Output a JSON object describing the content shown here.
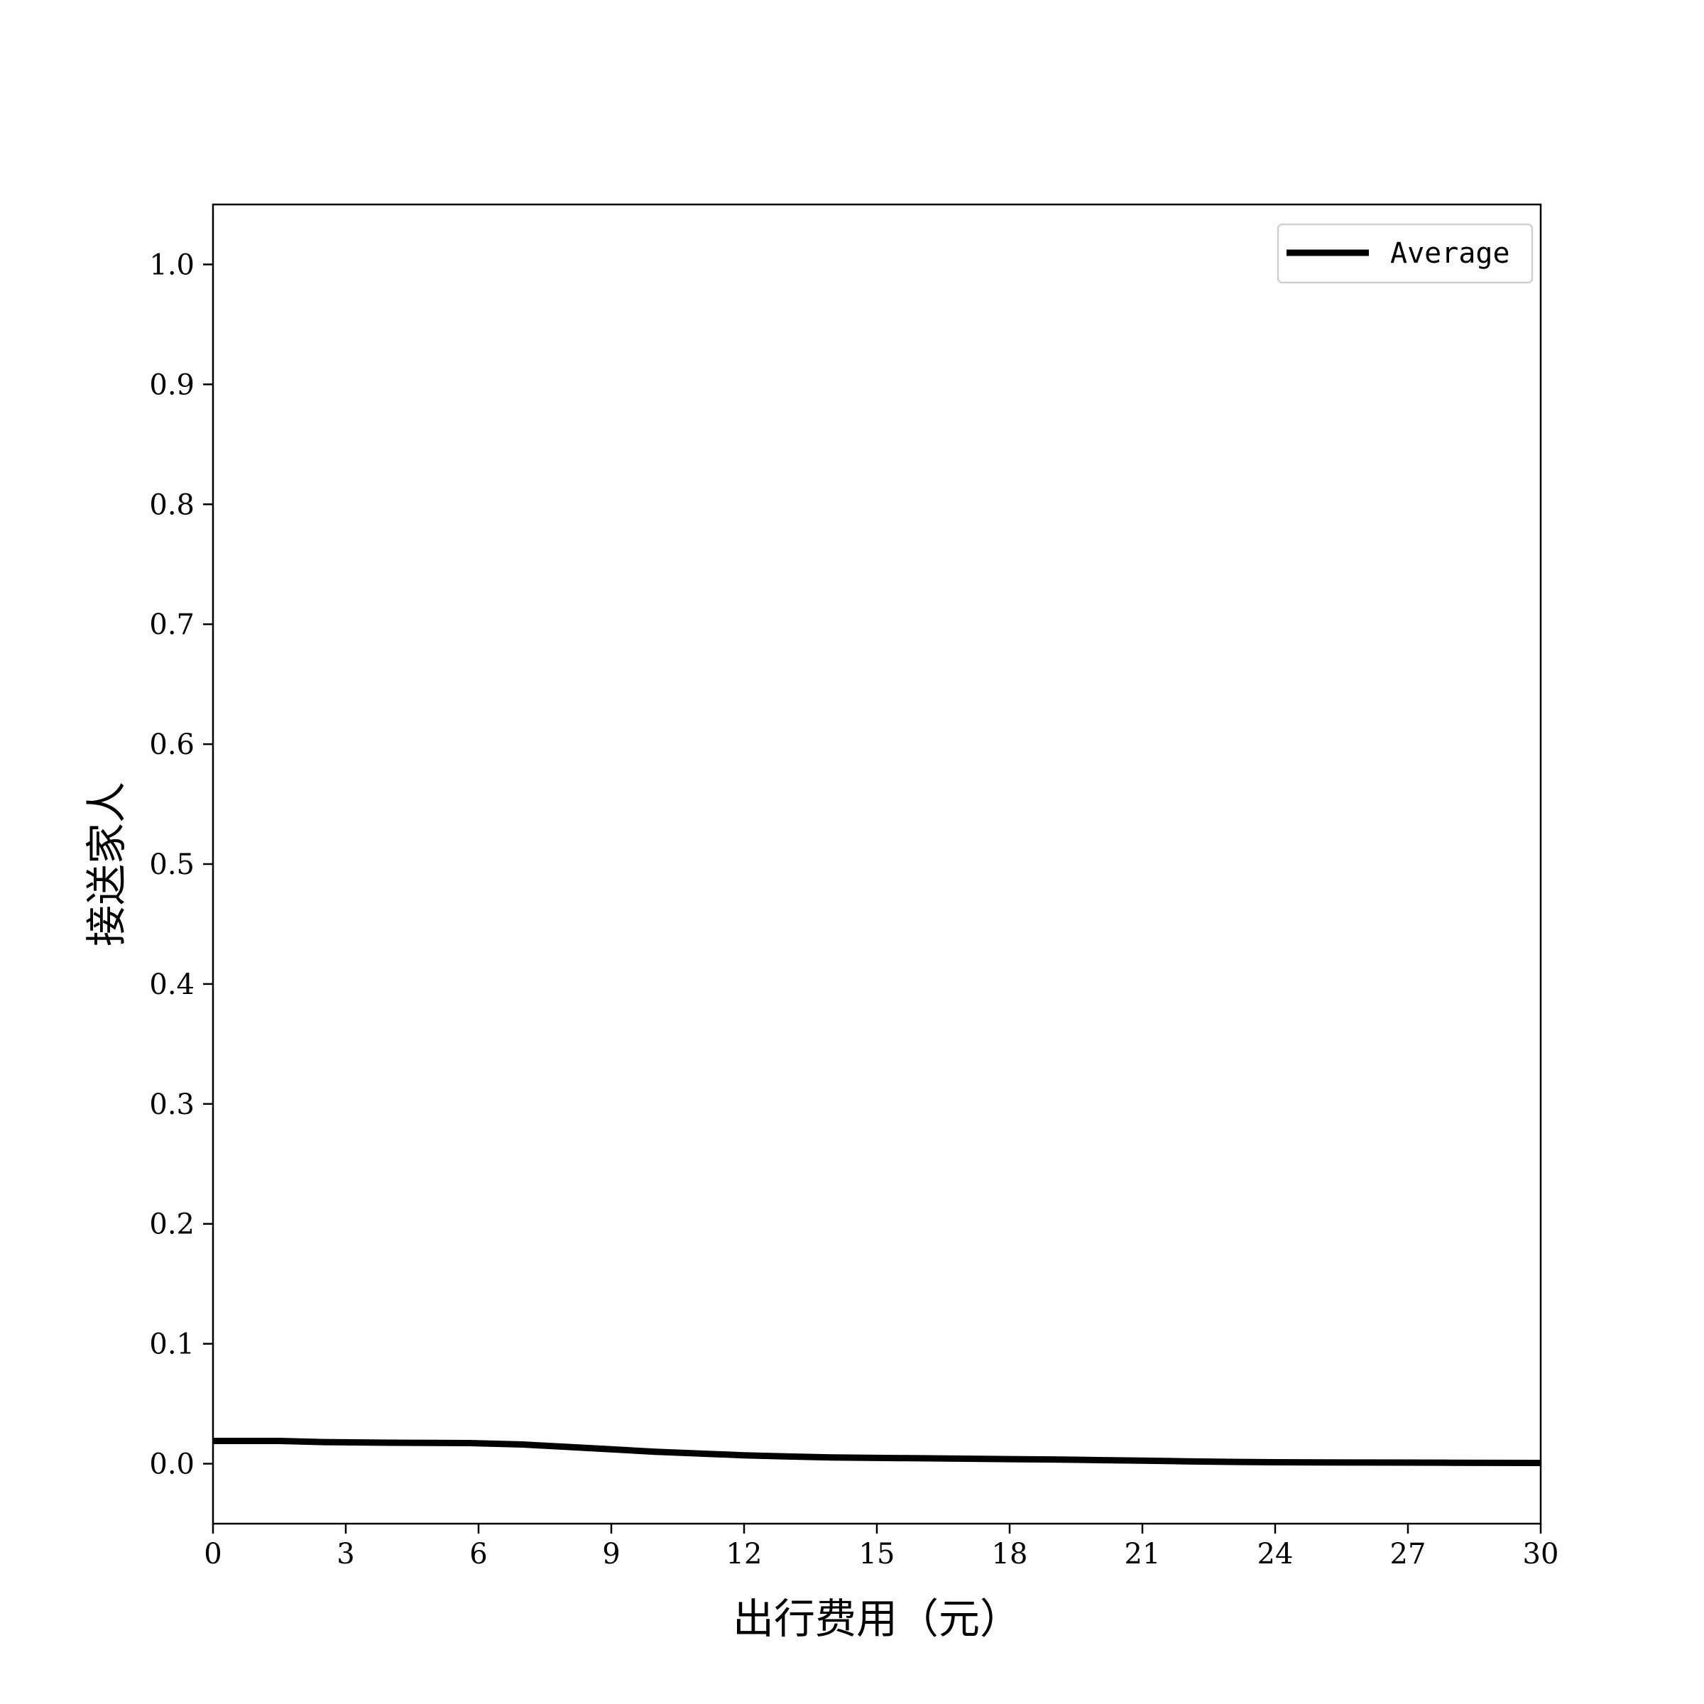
{
  "chart_data": {
    "type": "line",
    "title": "",
    "xlabel": "出行费用（元）",
    "ylabel": "接送家人",
    "xlim": [
      0,
      30
    ],
    "ylim": [
      -0.05,
      1.05
    ],
    "x_ticks": [
      0,
      3,
      6,
      9,
      12,
      15,
      18,
      21,
      24,
      27,
      30
    ],
    "x_tick_labels": [
      "0",
      "3",
      "6",
      "9",
      "12",
      "15",
      "18",
      "21",
      "24",
      "27",
      "30"
    ],
    "y_ticks": [
      0.0,
      0.1,
      0.2,
      0.3,
      0.4,
      0.5,
      0.6,
      0.7,
      0.8,
      0.9,
      1.0
    ],
    "y_tick_labels": [
      "0.0",
      "0.1",
      "0.2",
      "0.3",
      "0.4",
      "0.5",
      "0.6",
      "0.7",
      "0.8",
      "0.9",
      "1.0"
    ],
    "grid": false,
    "legend_position": "top-right",
    "series": [
      {
        "name": "Average",
        "color": "#000000",
        "x": [
          0,
          1.5,
          2.5,
          4,
          5.8,
          7,
          8,
          9,
          10,
          11,
          12,
          13,
          14,
          15,
          16,
          17,
          18,
          19,
          20,
          21,
          22,
          23,
          24,
          25,
          26,
          27,
          28,
          29,
          30
        ],
        "y": [
          0.019,
          0.019,
          0.018,
          0.0175,
          0.0172,
          0.016,
          0.014,
          0.012,
          0.01,
          0.0085,
          0.007,
          0.006,
          0.0052,
          0.0048,
          0.0045,
          0.0042,
          0.0038,
          0.0035,
          0.003,
          0.0025,
          0.002,
          0.0015,
          0.0012,
          0.0011,
          0.001,
          0.0009,
          0.0008,
          0.0007,
          0.0006
        ]
      }
    ]
  }
}
